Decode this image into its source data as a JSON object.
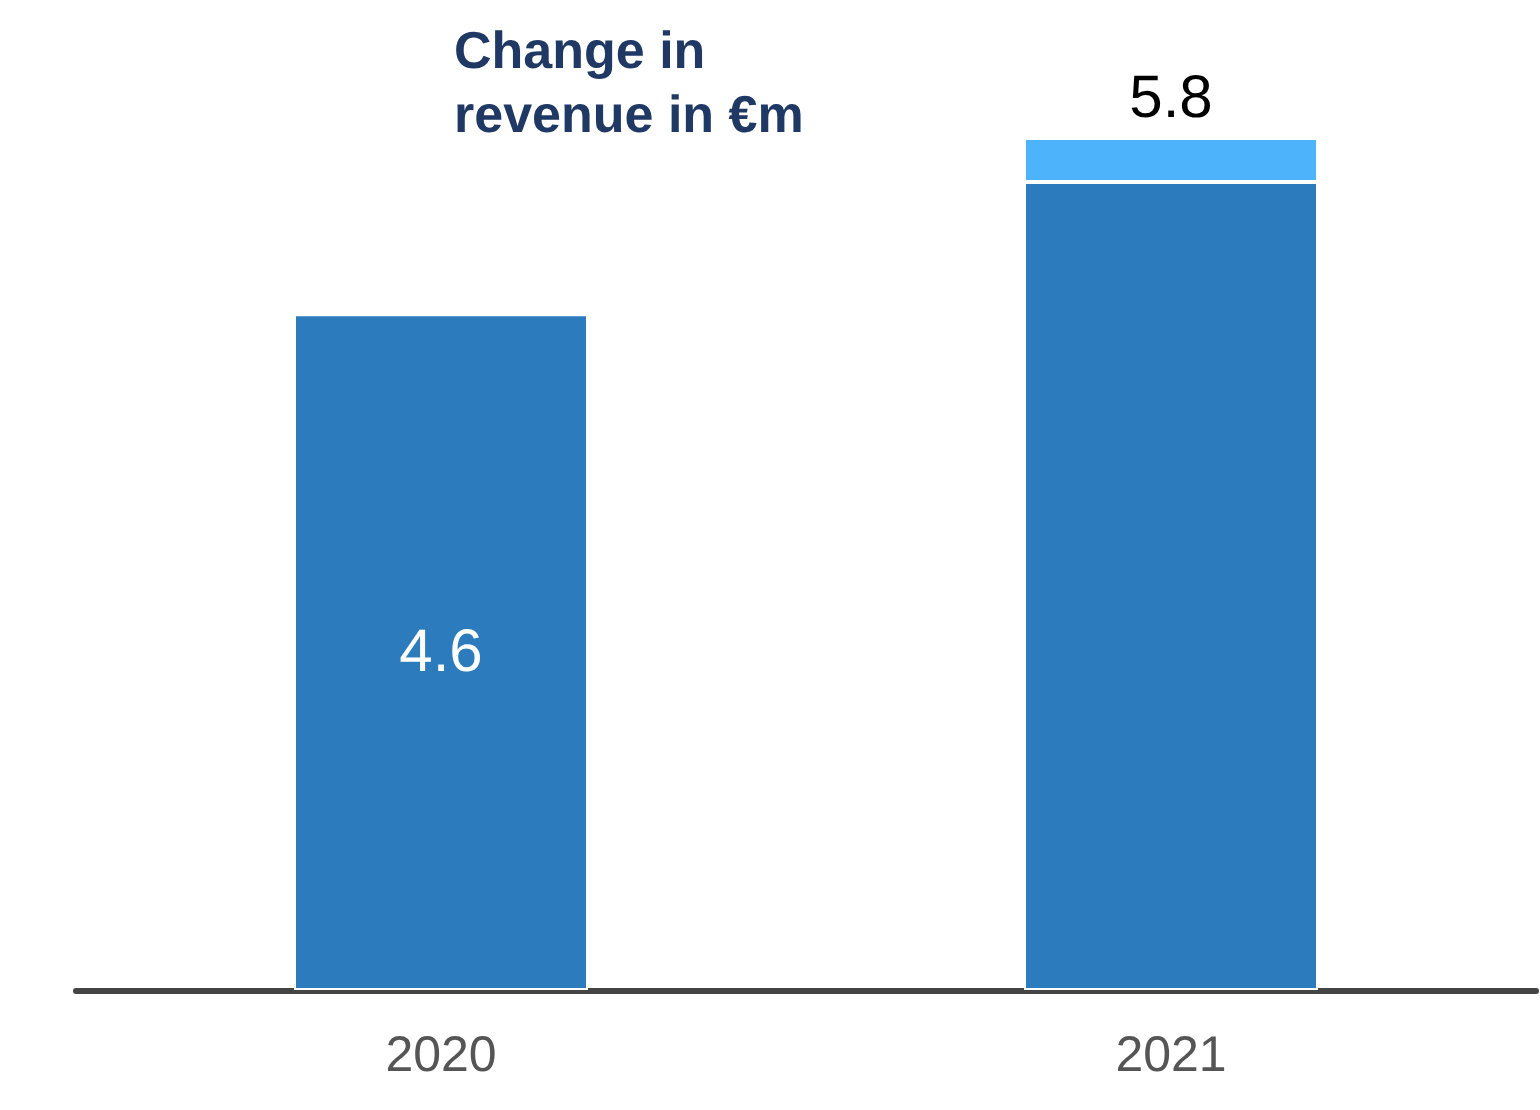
{
  "chart_data": {
    "type": "bar",
    "title": "Change in revenue in €m",
    "categories": [
      "2020",
      "2021"
    ],
    "stacked": true,
    "series": [
      {
        "color": "#2b7bbd",
        "values": [
          4.6,
          5.5
        ],
        "value_labels": [
          "4.6",
          null
        ]
      },
      {
        "color": "#4db3fb",
        "values": [
          null,
          0.3
        ]
      }
    ],
    "totals": [
      null,
      "5.8"
    ]
  }
}
